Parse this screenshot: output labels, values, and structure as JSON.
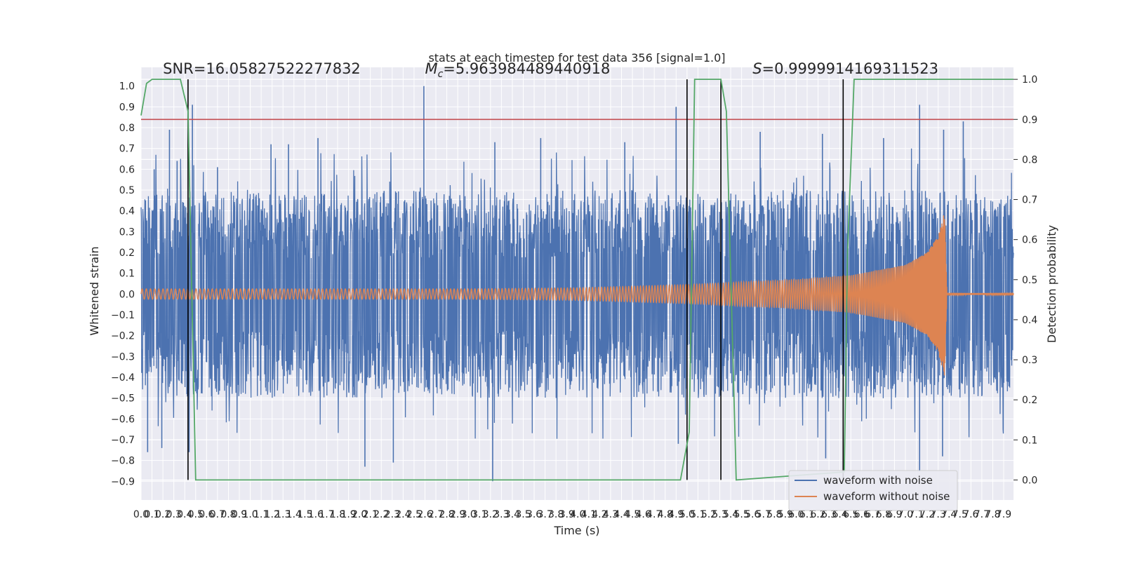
{
  "chart_data": {
    "type": "line",
    "title": "stats at each timestep for test data 356 [signal=1.0]",
    "xlabel": "Time (s)",
    "ylabel": "Whitened strain",
    "ylabel_right": "Detection probability",
    "xlim": [
      0.0,
      7.99
    ],
    "ylim": [
      -0.99,
      1.09
    ],
    "ylim_right": [
      -0.05,
      1.03
    ],
    "x_ticks": [
      0.0,
      0.1,
      0.2,
      0.3,
      0.4,
      0.5,
      0.6,
      0.7,
      0.8,
      0.9,
      1.0,
      1.1,
      1.2,
      1.3,
      1.4,
      1.5,
      1.6,
      1.7,
      1.8,
      1.9,
      2.0,
      2.1,
      2.2,
      2.3,
      2.4,
      2.5,
      2.6,
      2.7,
      2.8,
      2.9,
      3.0,
      3.1,
      3.2,
      3.3,
      3.4,
      3.5,
      3.6,
      3.7,
      3.8,
      3.9,
      4.0,
      4.1,
      4.2,
      4.3,
      4.4,
      4.5,
      4.6,
      4.7,
      4.8,
      4.9,
      5.0,
      5.1,
      5.2,
      5.3,
      5.4,
      5.5,
      5.6,
      5.7,
      5.8,
      5.9,
      6.0,
      6.1,
      6.2,
      6.3,
      6.4,
      6.5,
      6.6,
      6.7,
      6.8,
      6.9,
      7.0,
      7.1,
      7.2,
      7.3,
      7.4,
      7.5,
      7.6,
      7.7,
      7.8,
      7.9
    ],
    "x_tick_labels": [
      "0.0",
      "0.1",
      "0.2",
      "0.3",
      "0.4",
      "0.5",
      "0.6",
      "0.7",
      "0.8",
      "0.9",
      "1.0",
      "1.1",
      "1.2",
      "1.3",
      "1.4",
      "1.5",
      "1.6",
      "1.7",
      "1.8",
      "1.9",
      "2.0",
      "2.1",
      "2.2",
      "2.3",
      "2.4",
      "2.5",
      "2.6",
      "2.7",
      "2.8",
      "2.9",
      "3.0",
      "3.1",
      "3.2",
      "3.3",
      "3.4",
      "3.5",
      "3.6",
      "3.7",
      "3.8",
      "3.9",
      "4.0",
      "4.1",
      "4.2",
      "4.3",
      "4.4",
      "4.5",
      "4.6",
      "4.7",
      "4.8",
      "4.9",
      "5.0",
      "5.1",
      "5.2",
      "5.3",
      "5.4",
      "5.5",
      "5.6",
      "5.7",
      "5.8",
      "5.9",
      "6.0",
      "6.1",
      "6.2",
      "6.3",
      "6.4",
      "6.5",
      "6.6",
      "6.7",
      "6.8",
      "6.9",
      "7.0",
      "7.1",
      "7.2",
      "7.3",
      "7.4",
      "7.5",
      "7.6",
      "7.7",
      "7.8",
      "7.9"
    ],
    "y_ticks": [
      -0.9,
      -0.8,
      -0.7,
      -0.6,
      -0.5,
      -0.4,
      -0.3,
      -0.2,
      -0.1,
      0.0,
      0.1,
      0.2,
      0.3,
      0.4,
      0.5,
      0.6,
      0.7,
      0.8,
      0.9,
      1.0
    ],
    "y_tick_labels": [
      "−0.9",
      "−0.8",
      "−0.7",
      "−0.6",
      "−0.5",
      "−0.4",
      "−0.3",
      "−0.2",
      "−0.1",
      "0.0",
      "0.1",
      "0.2",
      "0.3",
      "0.4",
      "0.5",
      "0.6",
      "0.7",
      "0.8",
      "0.9",
      "1.0"
    ],
    "y_ticks_right": [
      0.0,
      0.1,
      0.2,
      0.3,
      0.4,
      0.5,
      0.6,
      0.7,
      0.8,
      0.9,
      1.0
    ],
    "y_tick_labels_right": [
      "0.0",
      "0.1",
      "0.2",
      "0.3",
      "0.4",
      "0.5",
      "0.6",
      "0.7",
      "0.8",
      "0.9",
      "1.0"
    ],
    "grid": true,
    "legend_position": "bottom-right",
    "annotations": [
      {
        "label": "SNR=16.05827522277832",
        "x": 0.2,
        "y": 1.06
      },
      {
        "label": "M_c=5.963984489440918",
        "x": 2.6,
        "y": 1.06
      },
      {
        "label": "S=0.9999914169311523",
        "x": 5.6,
        "y": 1.06
      }
    ],
    "threshold": {
      "axis": "right",
      "value": 0.9
    },
    "vertical_lines": [
      0.43,
      5.0,
      5.31,
      6.43
    ],
    "series": [
      {
        "name": "waveform with noise",
        "axis": "left",
        "color": "#4c72b0",
        "envelope_x": [
          0.0,
          0.5,
          1.0,
          1.5,
          2.0,
          2.5,
          3.0,
          3.5,
          4.0,
          4.5,
          5.0,
          5.5,
          6.0,
          6.5,
          7.0,
          7.5,
          7.99
        ],
        "envelope_hi": [
          0.47,
          0.5,
          0.5,
          0.48,
          0.5,
          0.5,
          0.48,
          0.5,
          0.5,
          0.5,
          0.48,
          0.5,
          0.5,
          0.5,
          0.5,
          0.5,
          0.47
        ],
        "envelope_lo": [
          -0.48,
          -0.5,
          -0.5,
          -0.5,
          -0.5,
          -0.5,
          -0.5,
          -0.5,
          -0.5,
          -0.5,
          -0.5,
          -0.5,
          -0.5,
          -0.5,
          -0.5,
          -0.5,
          -0.48
        ],
        "peaks": [
          [
            0.04,
            0.45
          ],
          [
            0.12,
            0.6
          ],
          [
            0.26,
            0.79
          ],
          [
            0.33,
            0.64
          ],
          [
            0.47,
            0.91
          ],
          [
            0.7,
            0.61
          ],
          [
            1.19,
            0.72
          ],
          [
            1.35,
            0.72
          ],
          [
            1.62,
            0.75
          ],
          [
            2.59,
            1.0
          ],
          [
            3.24,
            0.73
          ],
          [
            3.66,
            0.75
          ],
          [
            4.43,
            0.73
          ],
          [
            4.9,
            0.9
          ],
          [
            5.67,
            0.78
          ],
          [
            6.24,
            0.77
          ],
          [
            6.8,
            0.75
          ],
          [
            7.13,
            0.91
          ],
          [
            7.35,
            0.79
          ],
          [
            7.53,
            0.83
          ],
          [
            0.06,
            -0.76
          ],
          [
            0.19,
            -0.74
          ],
          [
            0.44,
            -0.76
          ],
          [
            2.05,
            -0.83
          ],
          [
            2.31,
            -0.81
          ],
          [
            3.22,
            -0.9
          ],
          [
            4.92,
            -0.72
          ],
          [
            6.27,
            -0.79
          ],
          [
            7.13,
            -0.85
          ],
          [
            7.34,
            -0.78
          ]
        ]
      },
      {
        "name": "waveform without noise",
        "axis": "left",
        "color": "#dd8452",
        "amplitude_x": [
          0.0,
          1.0,
          2.0,
          3.0,
          4.0,
          5.0,
          6.0,
          6.5,
          7.0,
          7.2,
          7.3,
          7.36,
          7.38,
          7.99
        ],
        "amplitude": [
          0.025,
          0.025,
          0.025,
          0.025,
          0.03,
          0.045,
          0.07,
          0.09,
          0.14,
          0.2,
          0.28,
          0.4,
          0.004,
          0.004
        ],
        "merger_time": 7.38
      },
      {
        "name": "detection probability",
        "axis": "right",
        "color": "#55a868",
        "x": [
          0.0,
          0.05,
          0.1,
          0.36,
          0.43,
          0.5,
          4.94,
          5.02,
          5.07,
          5.31,
          5.36,
          5.45,
          6.44,
          6.47,
          6.53,
          7.99
        ],
        "y": [
          0.91,
          0.99,
          1.0,
          1.0,
          0.92,
          0.0,
          0.0,
          0.12,
          1.0,
          1.0,
          0.92,
          0.0,
          0.02,
          0.57,
          1.0,
          1.0
        ]
      }
    ]
  }
}
